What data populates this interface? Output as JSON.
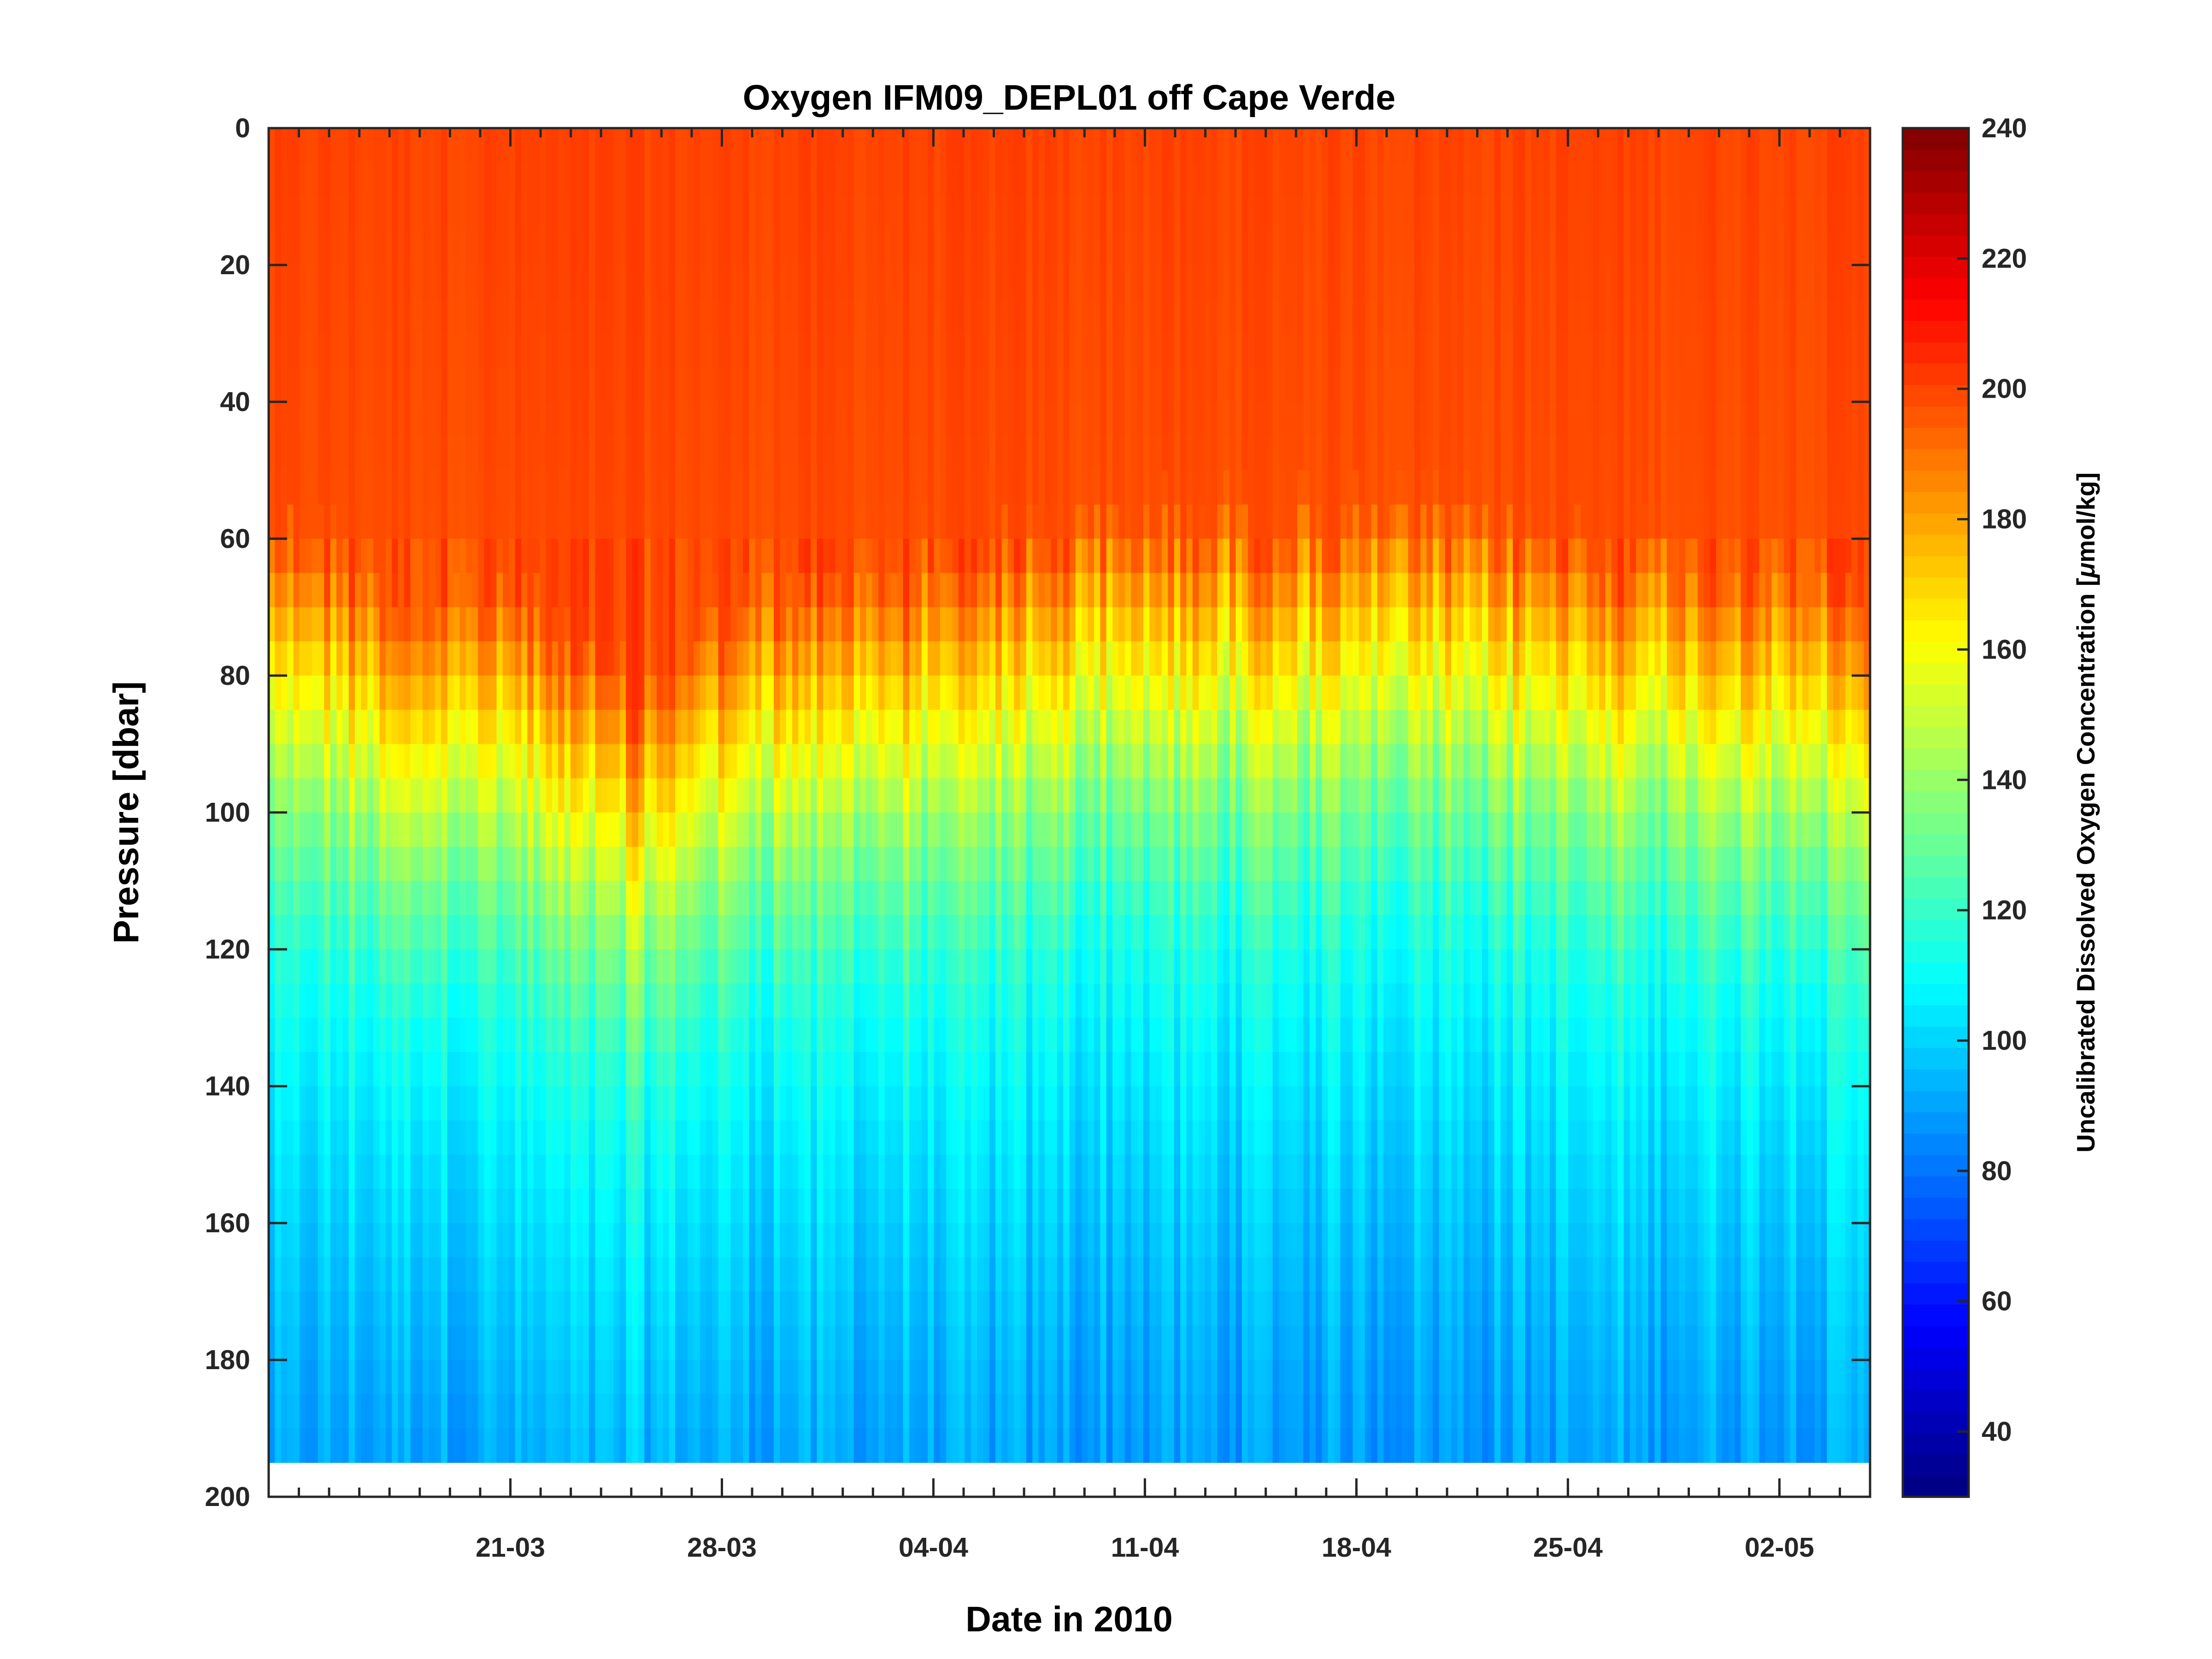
{
  "chart_data": {
    "type": "heatmap",
    "title": "Oxygen IFM09_DEPL01 off Cape Verde",
    "xlabel": "Date in 2010",
    "ylabel": "Pressure [dbar]",
    "colorbar_label_prefix": "Uncalibrated Dissolved Oxygen Concentration [",
    "colorbar_label_mu": "μ",
    "colorbar_label_suffix": "mol/kg]",
    "xlim": [
      "2010-03-13",
      "2010-05-05"
    ],
    "ylim": [
      0,
      200
    ],
    "y_reversed": true,
    "x_ticks": [
      {
        "date": "2010-03-21",
        "label": "21-03"
      },
      {
        "date": "2010-03-28",
        "label": "28-03"
      },
      {
        "date": "2010-04-04",
        "label": "04-04"
      },
      {
        "date": "2010-04-11",
        "label": "11-04"
      },
      {
        "date": "2010-04-18",
        "label": "18-04"
      },
      {
        "date": "2010-04-25",
        "label": "25-04"
      },
      {
        "date": "2010-05-02",
        "label": "02-05"
      }
    ],
    "y_ticks": [
      0,
      20,
      40,
      60,
      80,
      100,
      120,
      140,
      160,
      180,
      200
    ],
    "colorbar": {
      "colormap": "jet",
      "range": [
        30,
        240
      ],
      "ticks": [
        40,
        60,
        80,
        100,
        120,
        140,
        160,
        180,
        200,
        220,
        240
      ]
    },
    "data_extent": {
      "start": "2010-03-13",
      "end": "2010-05-05",
      "pressure_max": 199
    },
    "oxycline_depth_by_date": [
      {
        "date": "2010-03-13",
        "depth": 80
      },
      {
        "date": "2010-03-18",
        "depth": 95
      },
      {
        "date": "2010-03-21",
        "depth": 92
      },
      {
        "date": "2010-03-25",
        "depth": 108
      },
      {
        "date": "2010-03-28",
        "depth": 96
      },
      {
        "date": "2010-04-04",
        "depth": 88
      },
      {
        "date": "2010-04-11",
        "depth": 82
      },
      {
        "date": "2010-04-18",
        "depth": 82
      },
      {
        "date": "2010-04-25",
        "depth": 85
      },
      {
        "date": "2010-05-02",
        "depth": 90
      },
      {
        "date": "2010-05-05",
        "depth": 95
      }
    ],
    "values_by_depth": [
      {
        "pressure": 0,
        "oxygen": 200
      },
      {
        "pressure": 60,
        "oxygen": 198
      },
      {
        "pressure": 80,
        "oxygen": 165
      },
      {
        "pressure": 100,
        "oxygen": 135
      },
      {
        "pressure": 120,
        "oxygen": 115
      },
      {
        "pressure": 140,
        "oxygen": 105
      },
      {
        "pressure": 160,
        "oxygen": 98
      },
      {
        "pressure": 180,
        "oxygen": 92
      },
      {
        "pressure": 200,
        "oxygen": 88
      }
    ]
  }
}
